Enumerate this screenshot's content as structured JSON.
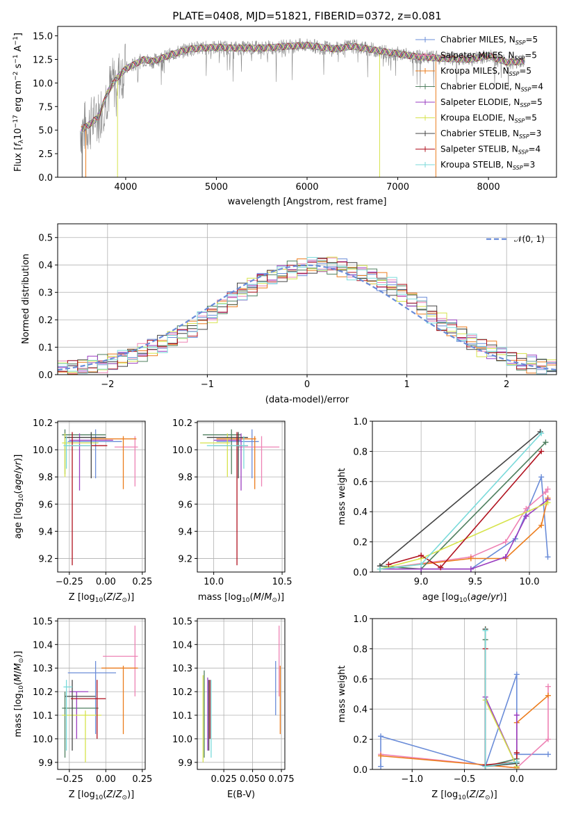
{
  "chart_data": [
    {
      "type": "line",
      "title": "PLATE=0408, MJD=51821, FIBERID=0372, z=0.081",
      "xlabel": "wavelength [Angstrom, rest frame]",
      "ylabel": "Flux [f_λ 10^-17 erg cm^-2 s^-1 A^-1]",
      "xlim": [
        3250,
        8750
      ],
      "ylim": [
        0,
        16
      ],
      "xticks": [
        "4000",
        "5000",
        "6000",
        "7000",
        "8000"
      ],
      "yticks": [
        "0.0",
        "2.5",
        "5.0",
        "7.5",
        "10.0",
        "12.5",
        "15.0"
      ],
      "legend": [
        {
          "name": "Chabrier MILES, N_SSP=5",
          "color": "#6a8cd8"
        },
        {
          "name": "Salpeter MILES, N_SSP=5",
          "color": "#ee82b4"
        },
        {
          "name": "Kroupa MILES, N_SSP=5",
          "color": "#ec7c1c"
        },
        {
          "name": "Chabrier ELODIE, N_SSP=4",
          "color": "#4f7f5f"
        },
        {
          "name": "Salpeter ELODIE, N_SSP=5",
          "color": "#9a3dc0"
        },
        {
          "name": "Kroupa ELODIE, N_SSP=5",
          "color": "#d6e34a"
        },
        {
          "name": "Chabrier STELIB, N_SSP=3",
          "color": "#444444"
        },
        {
          "name": "Salpeter STELIB, N_SSP=4",
          "color": "#b0111e"
        },
        {
          "name": "Kroupa STELIB, N_SSP=3",
          "color": "#7adada"
        }
      ],
      "spectrum_model": {
        "x": [
          3500,
          3600,
          3700,
          3800,
          3900,
          4000,
          4100,
          4200,
          4300,
          4500,
          4700,
          5000,
          5200,
          5500,
          5800,
          6000,
          6300,
          6500,
          6800,
          7000,
          7200,
          7500,
          7800,
          8000,
          8200,
          8400
        ],
        "y": [
          5.0,
          5.6,
          6.4,
          9.0,
          10.5,
          11.5,
          12.0,
          12.5,
          12.3,
          13.0,
          13.6,
          13.8,
          13.7,
          13.7,
          13.9,
          14.0,
          13.6,
          13.9,
          13.4,
          13.1,
          12.8,
          12.6,
          12.5,
          12.9,
          12.2,
          12.3
        ]
      }
    },
    {
      "type": "bar",
      "xlabel": "(data-model)/error",
      "ylabel": "Normed distribution",
      "xlim": [
        -2.5,
        2.5
      ],
      "ylim": [
        0,
        0.55
      ],
      "xticks": [
        "−2",
        "−1",
        "0",
        "1",
        "2"
      ],
      "yticks": [
        "0.0",
        "0.1",
        "0.2",
        "0.3",
        "0.4",
        "0.5"
      ],
      "legend": [
        {
          "name": "N(0,1)",
          "label": "𝒩(0, 1)",
          "color": "#6a8cd8"
        }
      ],
      "bin_edges": [
        -2.5,
        -2.4,
        -2.3,
        -2.2,
        -2.1,
        -2.0,
        -1.9,
        -1.8,
        -1.7,
        -1.6,
        -1.5,
        -1.4,
        -1.3,
        -1.2,
        -1.1,
        -1.0,
        -0.9,
        -0.8,
        -0.7,
        -0.6,
        -0.5,
        -0.4,
        -0.3,
        -0.2,
        -0.1,
        0.0,
        0.1,
        0.2,
        0.3,
        0.4,
        0.5,
        0.6,
        0.7,
        0.8,
        0.9,
        1.0,
        1.1,
        1.2,
        1.3,
        1.4,
        1.5,
        1.6,
        1.7,
        1.8,
        1.9,
        2.0,
        2.1,
        2.2,
        2.3,
        2.4,
        2.5
      ],
      "hist_base": [
        0.02,
        0.025,
        0.03,
        0.035,
        0.04,
        0.05,
        0.06,
        0.07,
        0.08,
        0.095,
        0.11,
        0.13,
        0.15,
        0.17,
        0.2,
        0.22,
        0.245,
        0.27,
        0.3,
        0.32,
        0.345,
        0.36,
        0.37,
        0.38,
        0.39,
        0.395,
        0.4,
        0.4,
        0.39,
        0.38,
        0.37,
        0.355,
        0.34,
        0.32,
        0.3,
        0.275,
        0.25,
        0.22,
        0.19,
        0.17,
        0.15,
        0.12,
        0.1,
        0.09,
        0.07,
        0.055,
        0.045,
        0.04,
        0.035,
        0.03
      ]
    },
    {
      "type": "scatter",
      "xlabel": "Z [log10(Z/Z⊙)]",
      "ylabel": "age  [log10(age/yr)]",
      "xlim": [
        -0.33,
        0.27
      ],
      "ylim": [
        9.1,
        10.21
      ],
      "xticks": [
        "−0.25",
        "0.00",
        "0.25"
      ],
      "yticks": [
        "9.2",
        "9.4",
        "9.6",
        "9.8",
        "10.0",
        "10.2"
      ],
      "errorbars": [
        {
          "x": -0.07,
          "y": 10.06,
          "xlo": -0.26,
          "xhi": 0.11,
          "ylo": 9.79,
          "yhi": 10.15,
          "color": "#6a8cd8"
        },
        {
          "x": 0.2,
          "y": 10.02,
          "xlo": 0.06,
          "xhi": 0.22,
          "ylo": 9.73,
          "yhi": 10.1,
          "color": "#ee82b4"
        },
        {
          "x": 0.12,
          "y": 10.08,
          "xlo": -0.1,
          "xhi": 0.21,
          "ylo": 9.71,
          "yhi": 10.1,
          "color": "#ec7c1c"
        },
        {
          "x": -0.28,
          "y": 10.11,
          "xlo": -0.3,
          "xhi": 0.0,
          "ylo": 9.82,
          "yhi": 10.15,
          "color": "#4f7f5f"
        },
        {
          "x": -0.18,
          "y": 10.07,
          "xlo": -0.25,
          "xhi": 0.05,
          "ylo": 9.7,
          "yhi": 10.12,
          "color": "#9a3dc0"
        },
        {
          "x": -0.28,
          "y": 10.05,
          "xlo": -0.3,
          "xhi": -0.05,
          "ylo": 9.8,
          "yhi": 10.12,
          "color": "#d6e34a"
        },
        {
          "x": -0.1,
          "y": 10.09,
          "xlo": -0.28,
          "xhi": 0.0,
          "ylo": 9.79,
          "yhi": 10.13,
          "color": "#444444"
        },
        {
          "x": -0.23,
          "y": 10.03,
          "xlo": -0.27,
          "xhi": 0.01,
          "ylo": 9.15,
          "yhi": 10.13,
          "color": "#b0111e"
        },
        {
          "x": -0.27,
          "y": 10.03,
          "xlo": -0.29,
          "xhi": -0.1,
          "ylo": 9.86,
          "yhi": 10.1,
          "color": "#7adada"
        }
      ]
    },
    {
      "type": "scatter",
      "xlabel": "mass [log10(M/M⊙)]",
      "ylabel": "",
      "xlim": [
        9.88,
        10.52
      ],
      "ylim": [
        9.1,
        10.21
      ],
      "xticks": [
        "10.0",
        "10.5"
      ],
      "yticks": [
        "9.2",
        "9.4",
        "9.6",
        "9.8",
        "10.0",
        "10.2"
      ],
      "errorbars": [
        {
          "x": 10.28,
          "y": 10.06,
          "xlo": 10.02,
          "xhi": 10.33,
          "ylo": 9.79,
          "yhi": 10.15,
          "color": "#6a8cd8"
        },
        {
          "x": 10.35,
          "y": 10.02,
          "xlo": 10.18,
          "xhi": 10.48,
          "ylo": 9.73,
          "yhi": 10.1,
          "color": "#ee82b4"
        },
        {
          "x": 10.3,
          "y": 10.08,
          "xlo": 10.02,
          "xhi": 10.31,
          "ylo": 9.71,
          "yhi": 10.1,
          "color": "#ec7c1c"
        },
        {
          "x": 10.13,
          "y": 10.11,
          "xlo": 9.92,
          "xhi": 10.2,
          "ylo": 9.82,
          "yhi": 10.15,
          "color": "#4f7f5f"
        },
        {
          "x": 10.2,
          "y": 10.07,
          "xlo": 10.0,
          "xhi": 10.2,
          "ylo": 9.7,
          "yhi": 10.12,
          "color": "#9a3dc0"
        },
        {
          "x": 10.1,
          "y": 10.05,
          "xlo": 9.9,
          "xhi": 10.12,
          "ylo": 9.8,
          "yhi": 10.12,
          "color": "#d6e34a"
        },
        {
          "x": 10.18,
          "y": 10.09,
          "xlo": 9.95,
          "xhi": 10.25,
          "ylo": 9.79,
          "yhi": 10.13,
          "color": "#444444"
        },
        {
          "x": 10.17,
          "y": 10.03,
          "xlo": 10.0,
          "xhi": 10.25,
          "ylo": 9.15,
          "yhi": 10.13,
          "color": "#b0111e"
        },
        {
          "x": 10.22,
          "y": 10.03,
          "xlo": 9.95,
          "xhi": 10.25,
          "ylo": 9.86,
          "yhi": 10.1,
          "color": "#7adada"
        }
      ]
    },
    {
      "type": "line",
      "xlabel": "age  [log10(age/yr)]",
      "ylabel": "mass weight",
      "xlim": [
        8.55,
        10.25
      ],
      "ylim": [
        0,
        1
      ],
      "xticks": [
        "9.0",
        "9.5",
        "10.0"
      ],
      "yticks": [
        "0.0",
        "0.2",
        "0.4",
        "0.6",
        "0.8",
        "1.0"
      ],
      "series": [
        {
          "color": "#6a8cd8",
          "x": [
            8.62,
            9.0,
            9.46,
            9.87,
            10.11,
            10.17
          ],
          "y": [
            0.02,
            0.02,
            0.02,
            0.22,
            0.63,
            0.1
          ]
        },
        {
          "color": "#ee82b4",
          "x": [
            8.62,
            9.46,
            9.78,
            9.97,
            10.15,
            10.17
          ],
          "y": [
            0.02,
            0.1,
            0.2,
            0.42,
            0.53,
            0.55
          ]
        },
        {
          "color": "#ec7c1c",
          "x": [
            8.62,
            9.46,
            9.78,
            10.11,
            10.17
          ],
          "y": [
            0.02,
            0.09,
            0.09,
            0.31,
            0.49
          ]
        },
        {
          "color": "#4f7f5f",
          "x": [
            8.62,
            9.0,
            10.15
          ],
          "y": [
            0.04,
            0.02,
            0.86
          ]
        },
        {
          "color": "#9a3dc0",
          "x": [
            8.62,
            9.0,
            9.46,
            9.78,
            9.97,
            10.17
          ],
          "y": [
            0.02,
            0.02,
            0.02,
            0.1,
            0.37,
            0.48
          ]
        },
        {
          "color": "#d6e34a",
          "x": [
            8.62,
            9.0,
            10.17
          ],
          "y": [
            0.02,
            0.09,
            0.46
          ]
        },
        {
          "color": "#444444",
          "x": [
            8.62,
            10.1
          ],
          "y": [
            0.04,
            0.93
          ]
        },
        {
          "color": "#b0111e",
          "x": [
            8.7,
            9.0,
            9.18,
            10.11
          ],
          "y": [
            0.05,
            0.11,
            0.03,
            0.8
          ]
        },
        {
          "color": "#7adada",
          "x": [
            8.62,
            9.0,
            10.11
          ],
          "y": [
            0.02,
            0.05,
            0.92
          ]
        }
      ]
    },
    {
      "type": "scatter",
      "xlabel": "Z [log10(Z/Z⊙)]",
      "ylabel": "mass [log10(M/M⊙)]",
      "xlim": [
        -0.33,
        0.27
      ],
      "ylim": [
        9.87,
        10.51
      ],
      "xticks": [
        "−0.25",
        "0.00",
        "0.25"
      ],
      "yticks": [
        "9.9",
        "10.0",
        "10.1",
        "10.2",
        "10.3",
        "10.4",
        "10.5"
      ],
      "errorbars": [
        {
          "x": -0.07,
          "y": 10.28,
          "xlo": -0.26,
          "xhi": 0.07,
          "ylo": 10.02,
          "yhi": 10.33,
          "color": "#6a8cd8"
        },
        {
          "x": 0.2,
          "y": 10.35,
          "xlo": -0.02,
          "xhi": 0.22,
          "ylo": 10.18,
          "yhi": 10.48,
          "color": "#ee82b4"
        },
        {
          "x": 0.12,
          "y": 10.3,
          "xlo": -0.03,
          "xhi": 0.22,
          "ylo": 10.02,
          "yhi": 10.31,
          "color": "#ec7c1c"
        },
        {
          "x": -0.28,
          "y": 10.13,
          "xlo": -0.3,
          "xhi": -0.05,
          "ylo": 9.92,
          "yhi": 10.2,
          "color": "#4f7f5f"
        },
        {
          "x": -0.2,
          "y": 10.2,
          "xlo": -0.25,
          "xhi": -0.12,
          "ylo": 10.0,
          "yhi": 10.2,
          "color": "#9a3dc0"
        },
        {
          "x": -0.14,
          "y": 10.1,
          "xlo": -0.3,
          "xhi": -0.03,
          "ylo": 9.9,
          "yhi": 10.12,
          "color": "#d6e34a"
        },
        {
          "x": -0.23,
          "y": 10.18,
          "xlo": -0.28,
          "xhi": -0.07,
          "ylo": 9.95,
          "yhi": 10.25,
          "color": "#444444"
        },
        {
          "x": -0.06,
          "y": 10.17,
          "xlo": -0.24,
          "xhi": 0.0,
          "ylo": 10.0,
          "yhi": 10.25,
          "color": "#b0111e"
        },
        {
          "x": -0.27,
          "y": 10.22,
          "xlo": -0.29,
          "xhi": -0.23,
          "ylo": 9.95,
          "yhi": 10.25,
          "color": "#7adada"
        }
      ]
    },
    {
      "type": "scatter",
      "xlabel": "E(B-V)",
      "ylabel": "",
      "xlim": [
        0.002,
        0.078
      ],
      "ylim": [
        9.87,
        10.51
      ],
      "xticks": [
        "0.025",
        "0.050",
        "0.075"
      ],
      "yticks": [
        "9.9",
        "10.0",
        "10.1",
        "10.2",
        "10.3",
        "10.4",
        "10.5"
      ],
      "errorbars": [
        {
          "x": 0.07,
          "y": 10.2,
          "ylo": 10.1,
          "yhi": 10.33,
          "color": "#6a8cd8"
        },
        {
          "x": 0.073,
          "y": 10.3,
          "ylo": 10.18,
          "yhi": 10.48,
          "color": "#ee82b4"
        },
        {
          "x": 0.074,
          "y": 10.2,
          "ylo": 10.02,
          "yhi": 10.31,
          "color": "#ec7c1c"
        },
        {
          "x": 0.008,
          "y": 10.1,
          "ylo": 9.92,
          "yhi": 10.29,
          "color": "#4f7f5f"
        },
        {
          "x": 0.011,
          "y": 10.1,
          "ylo": 9.95,
          "yhi": 10.26,
          "color": "#9a3dc0"
        },
        {
          "x": 0.007,
          "y": 10.1,
          "ylo": 9.9,
          "yhi": 10.27,
          "color": "#d6e34a"
        },
        {
          "x": 0.012,
          "y": 10.1,
          "ylo": 9.95,
          "yhi": 10.25,
          "color": "#444444"
        },
        {
          "x": 0.013,
          "y": 10.1,
          "ylo": 10.0,
          "yhi": 10.25,
          "color": "#b0111e"
        },
        {
          "x": 0.014,
          "y": 10.1,
          "ylo": 9.92,
          "yhi": 10.25,
          "color": "#7adada"
        }
      ]
    },
    {
      "type": "line",
      "xlabel": "Z [log10(Z/Z⊙)]",
      "ylabel": "mass weight",
      "xlim": [
        -1.38,
        0.38
      ],
      "ylim": [
        0,
        1
      ],
      "xticks": [
        "−1.0",
        "−0.5",
        "0.0"
      ],
      "yticks": [
        "0.0",
        "0.2",
        "0.4",
        "0.6",
        "0.8",
        "1.0"
      ],
      "series": [
        {
          "color": "#6a8cd8",
          "x": [
            -1.3,
            -1.3,
            -0.3,
            0.0,
            0.0,
            0.3
          ],
          "y": [
            0.02,
            0.22,
            0.02,
            0.63,
            0.1,
            0.1
          ]
        },
        {
          "color": "#ee82b4",
          "x": [
            -1.3,
            -0.3,
            0.0,
            0.3,
            0.3
          ],
          "y": [
            0.1,
            0.03,
            0.01,
            0.2,
            0.55
          ]
        },
        {
          "color": "#ec7c1c",
          "x": [
            -1.3,
            -0.3,
            0.0,
            0.0,
            0.3
          ],
          "y": [
            0.09,
            0.03,
            0.01,
            0.31,
            0.49
          ]
        },
        {
          "color": "#4f7f5f",
          "x": [
            -0.3,
            -0.3,
            0.0
          ],
          "y": [
            0.86,
            0.02,
            0.07
          ]
        },
        {
          "color": "#9a3dc0",
          "x": [
            -0.3,
            -0.3,
            0.0,
            0.0
          ],
          "y": [
            0.02,
            0.48,
            0.02,
            0.36
          ]
        },
        {
          "color": "#d6e34a",
          "x": [
            -0.3,
            -0.3,
            0.0
          ],
          "y": [
            0.93,
            0.46,
            0.02
          ]
        },
        {
          "color": "#444444",
          "x": [
            -0.3,
            -0.3,
            0.0
          ],
          "y": [
            0.93,
            0.02,
            0.04
          ]
        },
        {
          "color": "#b0111e",
          "x": [
            -0.3,
            -0.3,
            0.0,
            0.0
          ],
          "y": [
            0.8,
            0.03,
            0.05,
            0.11
          ]
        },
        {
          "color": "#7adada",
          "x": [
            -0.3,
            -0.3,
            0.0
          ],
          "y": [
            0.92,
            0.02,
            0.05
          ]
        }
      ]
    }
  ]
}
